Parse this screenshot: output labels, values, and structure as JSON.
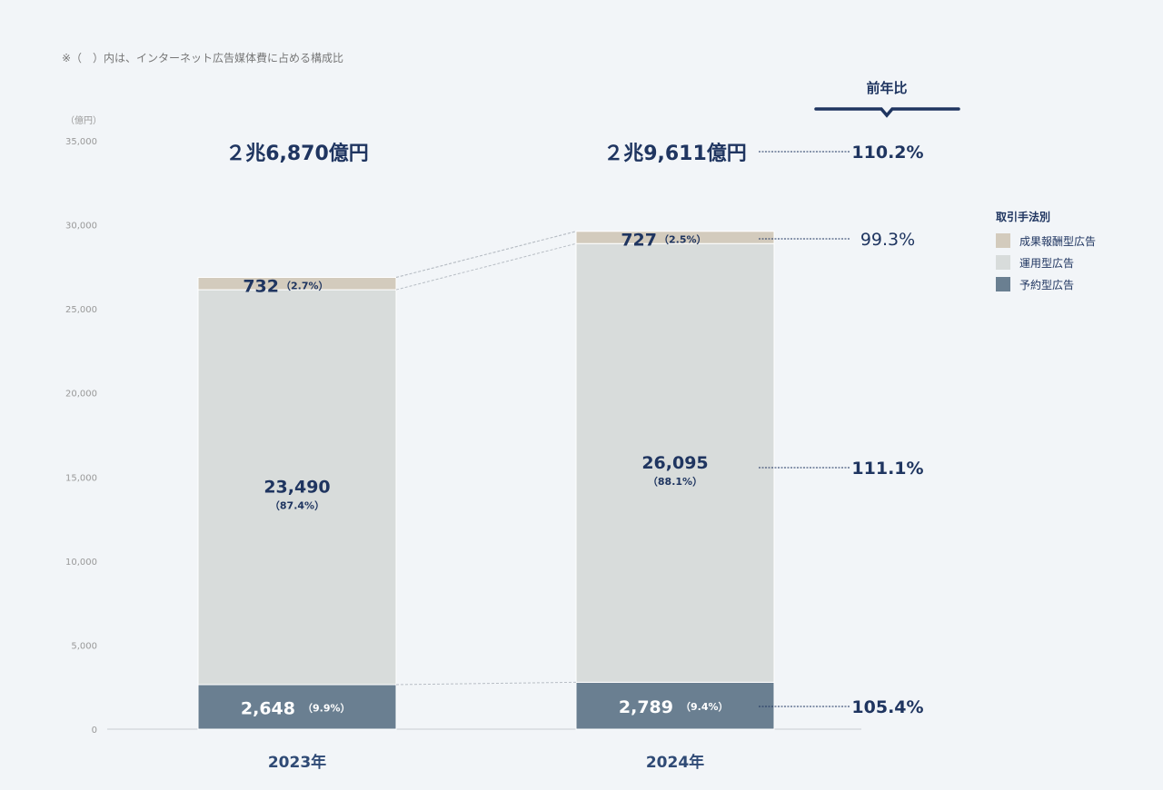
{
  "note": "※（　）内は、インターネット広告媒体費に占める構成比",
  "yoy_header": "前年比",
  "legend": {
    "title": "取引手法別",
    "items": [
      {
        "label": "成果報酬型広告",
        "color": "#d3cbbd"
      },
      {
        "label": "運用型広告",
        "color": "#d8dcdb"
      },
      {
        "label": "予約型広告",
        "color": "#6a7f91"
      }
    ]
  },
  "chart_data": {
    "type": "bar",
    "stacked": true,
    "ylabel": "（億円）",
    "ylim": [
      0,
      35000
    ],
    "yticks": [
      0,
      5000,
      10000,
      15000,
      20000,
      25000,
      30000,
      35000
    ],
    "ytick_labels": [
      "0",
      "5,000",
      "10,000",
      "15,000",
      "20,000",
      "25,000",
      "30,000",
      "35,000"
    ],
    "categories": [
      "2023年",
      "2024年"
    ],
    "totals": [
      "２兆6,870億円",
      "２兆9,611億円"
    ],
    "total_values": [
      26870,
      29611
    ],
    "series": [
      {
        "name": "予約型広告",
        "color": "#6a7f91",
        "values": [
          2648,
          2789
        ],
        "labels": [
          "2,648",
          "2,789"
        ],
        "shares": [
          "（9.9%）",
          "（9.4%）"
        ],
        "yoy": "105.4%"
      },
      {
        "name": "運用型広告",
        "color": "#d8dcdb",
        "values": [
          23490,
          26095
        ],
        "labels": [
          "23,490",
          "26,095"
        ],
        "shares": [
          "（87.4%）",
          "（88.1%）"
        ],
        "yoy": "111.1%"
      },
      {
        "name": "成果報酬型広告",
        "color": "#d3cbbd",
        "values": [
          732,
          727
        ],
        "labels": [
          "732",
          "727"
        ],
        "shares": [
          "（2.7%）",
          "（2.5%）"
        ],
        "yoy": "99.3%"
      }
    ],
    "total_yoy": "110.2%"
  }
}
